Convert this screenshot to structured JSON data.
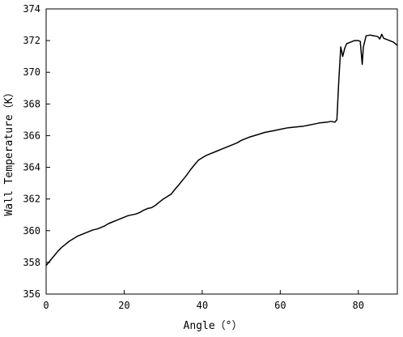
{
  "chart_data": {
    "type": "line",
    "title": "",
    "xlabel": "Angle（°）",
    "ylabel": "Wall Temperature（K）",
    "xlim": [
      0,
      90
    ],
    "ylim": [
      356,
      374
    ],
    "x_ticks": [
      0,
      20,
      40,
      60,
      80
    ],
    "y_ticks": [
      356,
      358,
      360,
      362,
      364,
      366,
      368,
      370,
      372,
      374
    ],
    "grid": false,
    "legend": "none",
    "line_color": "#000000",
    "series": [
      {
        "x": [
          0,
          1,
          2,
          3,
          4,
          5,
          6,
          7,
          8,
          9,
          10,
          11,
          12,
          13,
          14,
          15,
          16,
          17,
          18,
          19,
          20,
          21,
          22,
          23,
          24,
          25,
          26,
          27,
          28,
          29,
          30,
          31,
          32,
          33,
          34,
          35,
          36,
          37,
          38,
          39,
          40,
          41,
          42,
          43,
          44,
          45,
          46,
          47,
          48,
          49,
          50,
          52,
          54,
          56,
          58,
          60,
          62,
          64,
          66,
          68,
          70,
          72,
          73,
          74,
          74.5,
          75,
          75.5,
          76,
          76.5,
          77,
          78,
          79,
          80,
          80.5,
          81,
          81.3,
          81.7,
          82,
          83,
          84,
          85,
          85.5,
          86,
          86.5,
          87,
          88,
          89,
          90
        ],
        "y": [
          357.8,
          358.1,
          358.4,
          358.7,
          358.95,
          359.15,
          359.35,
          359.5,
          359.65,
          359.75,
          359.85,
          359.95,
          360.05,
          360.1,
          360.2,
          360.3,
          360.45,
          360.55,
          360.65,
          360.75,
          360.85,
          360.95,
          361.0,
          361.05,
          361.15,
          361.3,
          361.4,
          361.45,
          361.6,
          361.8,
          362.0,
          362.15,
          362.3,
          362.6,
          362.9,
          363.2,
          363.5,
          363.85,
          364.15,
          364.45,
          364.6,
          364.75,
          364.85,
          364.95,
          365.05,
          365.15,
          365.25,
          365.35,
          365.45,
          365.55,
          365.7,
          365.9,
          366.05,
          366.2,
          366.3,
          366.4,
          366.5,
          366.55,
          366.6,
          366.7,
          366.8,
          366.85,
          366.9,
          366.85,
          367.0,
          369.5,
          371.6,
          371.0,
          371.5,
          371.8,
          371.9,
          372.0,
          372.0,
          371.95,
          370.5,
          371.6,
          372.0,
          372.3,
          372.35,
          372.3,
          372.25,
          372.1,
          372.4,
          372.15,
          372.1,
          372.0,
          371.9,
          371.7
        ]
      }
    ]
  }
}
